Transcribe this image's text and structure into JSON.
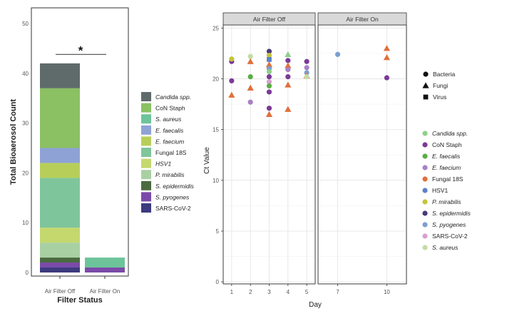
{
  "chart_data": [
    {
      "type": "bar",
      "stacked": true,
      "xlabel": "Filter Status",
      "ylabel": "Total Bioaerosol Count",
      "ylim": [
        0,
        50
      ],
      "yticks": [
        "0",
        "10",
        "20",
        "30",
        "40",
        "50"
      ],
      "grid": false,
      "categories": [
        "Air Filter Off",
        "Air Filter On"
      ],
      "significance": "*",
      "legend_position": "right",
      "series": [
        {
          "name": "SARS-CoV-2",
          "italic": false,
          "color": "#3d3a7e",
          "values": [
            1,
            0
          ]
        },
        {
          "name": "S. pyogenes",
          "italic": true,
          "color": "#7a4aa8",
          "values": [
            1,
            1
          ]
        },
        {
          "name": "S. epidermidis",
          "italic": true,
          "color": "#4a6a40",
          "values": [
            1,
            0
          ]
        },
        {
          "name": "P. mirabilis",
          "italic": true,
          "color": "#a9d0a2",
          "values": [
            3,
            0
          ]
        },
        {
          "name": "HSV1",
          "italic": true,
          "color": "#c5d86e",
          "values": [
            3,
            0
          ]
        },
        {
          "name": "Fungal 18S",
          "italic": false,
          "color": "#7fc59b",
          "values": [
            10,
            0
          ]
        },
        {
          "name": "E. faecium",
          "italic": true,
          "color": "#b7cf59",
          "values": [
            3,
            0
          ]
        },
        {
          "name": "E. faecalis",
          "italic": true,
          "color": "#8ea2d6",
          "values": [
            3,
            0
          ]
        },
        {
          "name": "S. aureus",
          "italic": true,
          "color": "#6dc49a",
          "values": [
            0,
            2
          ]
        },
        {
          "name": "CoN Staph",
          "italic": false,
          "color": "#8bc063",
          "values": [
            12,
            0
          ]
        },
        {
          "name": "Candida spp.",
          "italic": true,
          "color": "#5f6b6a",
          "values": [
            5,
            0
          ]
        }
      ]
    },
    {
      "type": "scatter",
      "xlabel": "Day",
      "ylabel": "Ct Value",
      "panels": [
        {
          "strip": "Air Filter Off",
          "xticks": [
            "1",
            "2",
            "3",
            "4",
            "5"
          ],
          "xlim": [
            0.55,
            5.45
          ]
        },
        {
          "strip": "Air Filter On",
          "xticks": [
            "7",
            "10"
          ],
          "xlim": [
            5.8,
            11.2
          ]
        }
      ],
      "ylim": [
        -0.2,
        25.3
      ],
      "yticks": [
        "0",
        "5",
        "10",
        "15",
        "20",
        "25"
      ],
      "grid": true,
      "shape_legend": [
        {
          "name": "Bacteria",
          "shape": "circle"
        },
        {
          "name": "Fungi",
          "shape": "triangle"
        },
        {
          "name": "Virus",
          "shape": "square"
        }
      ],
      "color_legend": [
        {
          "name": "Candida spp.",
          "italic": true,
          "color": "#8ecf8c"
        },
        {
          "name": "CoN Staph",
          "italic": false,
          "color": "#7b3a96"
        },
        {
          "name": "E. faecalis",
          "italic": true,
          "color": "#5aad45"
        },
        {
          "name": "E. faecium",
          "italic": true,
          "color": "#a881c6"
        },
        {
          "name": "Fungal 18S",
          "italic": false,
          "color": "#e0703a"
        },
        {
          "name": "HSV1",
          "italic": false,
          "color": "#5b82c8"
        },
        {
          "name": "P. mirabilis",
          "italic": true,
          "color": "#c5c43a"
        },
        {
          "name": "S. epidermidis",
          "italic": true,
          "color": "#4a3a78"
        },
        {
          "name": "S. pyogenes",
          "italic": true,
          "color": "#7b9fd0"
        },
        {
          "name": "SARS-CoV-2",
          "italic": false,
          "color": "#d8a0cf"
        },
        {
          "name": "S. aureus",
          "italic": true,
          "color": "#c4dca5"
        }
      ],
      "points": [
        {
          "panel": 0,
          "x": 1,
          "y": 21.7,
          "shape": "circle",
          "color": "#7b3a96"
        },
        {
          "panel": 0,
          "x": 1,
          "y": 21.95,
          "shape": "circle",
          "color": "#c5c43a"
        },
        {
          "panel": 0,
          "x": 1,
          "y": 19.8,
          "shape": "circle",
          "color": "#7b3a96"
        },
        {
          "panel": 0,
          "x": 1,
          "y": 18.4,
          "shape": "triangle",
          "color": "#e0703a"
        },
        {
          "panel": 0,
          "x": 2,
          "y": 22.2,
          "shape": "circle",
          "color": "#c4dca5"
        },
        {
          "panel": 0,
          "x": 2,
          "y": 21.7,
          "shape": "triangle",
          "color": "#e0703a"
        },
        {
          "panel": 0,
          "x": 2,
          "y": 20.2,
          "shape": "circle",
          "color": "#5aad45"
        },
        {
          "panel": 0,
          "x": 2,
          "y": 19.1,
          "shape": "triangle",
          "color": "#e0703a"
        },
        {
          "panel": 0,
          "x": 2,
          "y": 17.7,
          "shape": "circle",
          "color": "#a881c6"
        },
        {
          "panel": 0,
          "x": 3,
          "y": 22.7,
          "shape": "circle",
          "color": "#4a3a78"
        },
        {
          "panel": 0,
          "x": 3,
          "y": 22.3,
          "shape": "circle",
          "color": "#c5c43a"
        },
        {
          "panel": 0,
          "x": 3,
          "y": 21.9,
          "shape": "square",
          "color": "#5b82c8"
        },
        {
          "panel": 0,
          "x": 3,
          "y": 21.4,
          "shape": "triangle",
          "color": "#e0703a"
        },
        {
          "panel": 0,
          "x": 3,
          "y": 21.0,
          "shape": "circle",
          "color": "#7b9fd0"
        },
        {
          "panel": 0,
          "x": 3,
          "y": 20.7,
          "shape": "circle",
          "color": "#8ecf8c"
        },
        {
          "panel": 0,
          "x": 3,
          "y": 20.2,
          "shape": "circle",
          "color": "#7b3a96"
        },
        {
          "panel": 0,
          "x": 3,
          "y": 19.7,
          "shape": "circle",
          "color": "#d8a0cf"
        },
        {
          "panel": 0,
          "x": 3,
          "y": 19.3,
          "shape": "circle",
          "color": "#5aad45"
        },
        {
          "panel": 0,
          "x": 3,
          "y": 18.7,
          "shape": "circle",
          "color": "#7b3a96"
        },
        {
          "panel": 0,
          "x": 3,
          "y": 17.1,
          "shape": "circle",
          "color": "#7b3a96"
        },
        {
          "panel": 0,
          "x": 3,
          "y": 16.5,
          "shape": "triangle",
          "color": "#e0703a"
        },
        {
          "panel": 0,
          "x": 4,
          "y": 22.4,
          "shape": "triangle",
          "color": "#8ecf8c"
        },
        {
          "panel": 0,
          "x": 4,
          "y": 21.8,
          "shape": "circle",
          "color": "#7b3a96"
        },
        {
          "panel": 0,
          "x": 4,
          "y": 21.3,
          "shape": "triangle",
          "color": "#e0703a"
        },
        {
          "panel": 0,
          "x": 4,
          "y": 20.9,
          "shape": "circle",
          "color": "#a881c6"
        },
        {
          "panel": 0,
          "x": 4,
          "y": 20.2,
          "shape": "circle",
          "color": "#7b3a96"
        },
        {
          "panel": 0,
          "x": 4,
          "y": 19.4,
          "shape": "triangle",
          "color": "#e0703a"
        },
        {
          "panel": 0,
          "x": 4,
          "y": 17.0,
          "shape": "triangle",
          "color": "#e0703a"
        },
        {
          "panel": 0,
          "x": 5,
          "y": 21.7,
          "shape": "circle",
          "color": "#7b3a96"
        },
        {
          "panel": 0,
          "x": 5,
          "y": 21.1,
          "shape": "circle",
          "color": "#a881c6"
        },
        {
          "panel": 0,
          "x": 5,
          "y": 20.6,
          "shape": "circle",
          "color": "#7b9fd0"
        },
        {
          "panel": 0,
          "x": 5,
          "y": 20.3,
          "shape": "triangle",
          "color": "#e0703a"
        },
        {
          "panel": 0,
          "x": 5,
          "y": 20.2,
          "shape": "circle",
          "color": "#c4dca5"
        },
        {
          "panel": 1,
          "x": 7,
          "y": 22.4,
          "shape": "circle",
          "color": "#7b9fd0"
        },
        {
          "panel": 1,
          "x": 10,
          "y": 23.0,
          "shape": "triangle",
          "color": "#e0703a"
        },
        {
          "panel": 1,
          "x": 10,
          "y": 22.1,
          "shape": "triangle",
          "color": "#e0703a"
        },
        {
          "panel": 1,
          "x": 10,
          "y": 20.1,
          "shape": "circle",
          "color": "#7b3a96"
        }
      ]
    }
  ]
}
